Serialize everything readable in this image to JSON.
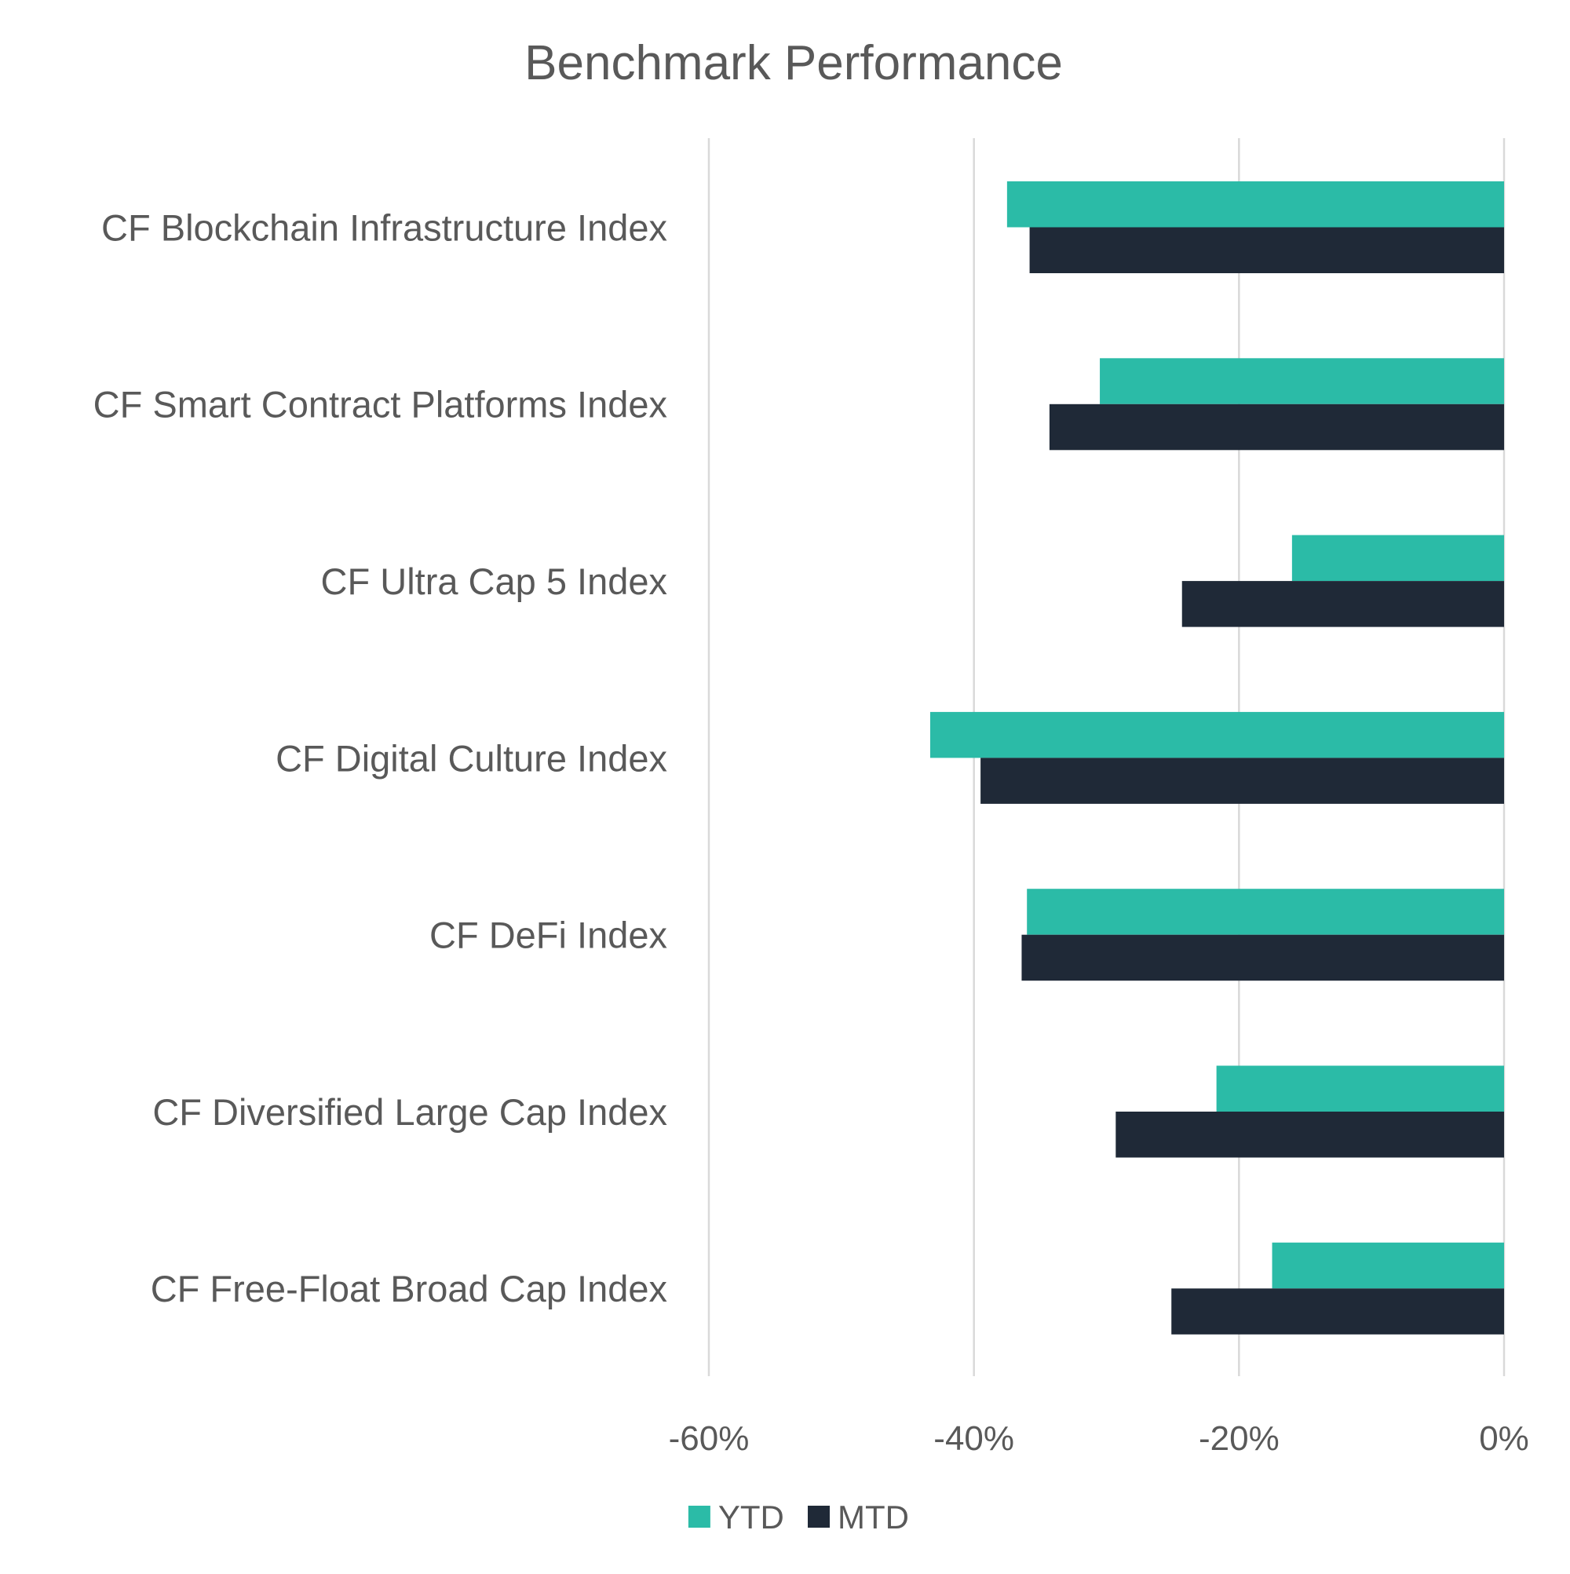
{
  "chart_data": {
    "type": "bar",
    "orientation": "horizontal",
    "title": "Benchmark Performance",
    "categories": [
      "CF Blockchain Infrastructure Index",
      "CF Smart Contract Platforms Index",
      "CF Ultra Cap 5 Index",
      "CF Digital Culture Index",
      "CF DeFi Index",
      "CF Diversified Large Cap Index",
      "CF Free-Float Broad Cap Index"
    ],
    "series": [
      {
        "name": "YTD",
        "color": "#2bbba7",
        "values": [
          -37.5,
          -30.5,
          -16.0,
          -43.3,
          -36.0,
          -21.7,
          -17.5
        ]
      },
      {
        "name": "MTD",
        "color": "#1f2937",
        "values": [
          -35.8,
          -34.3,
          -24.3,
          -39.5,
          -36.4,
          -29.3,
          -25.1
        ]
      }
    ],
    "xlim": [
      -60,
      0
    ],
    "xticks": [
      -60,
      -40,
      -20,
      0
    ],
    "xtick_labels": [
      "-60%",
      "-40%",
      "-20%",
      "0%"
    ],
    "xlabel": "",
    "ylabel": "",
    "grid": true,
    "legend_position": "bottom-center",
    "colors": {
      "text": "#595959",
      "grid": "#d9d9d9"
    }
  }
}
